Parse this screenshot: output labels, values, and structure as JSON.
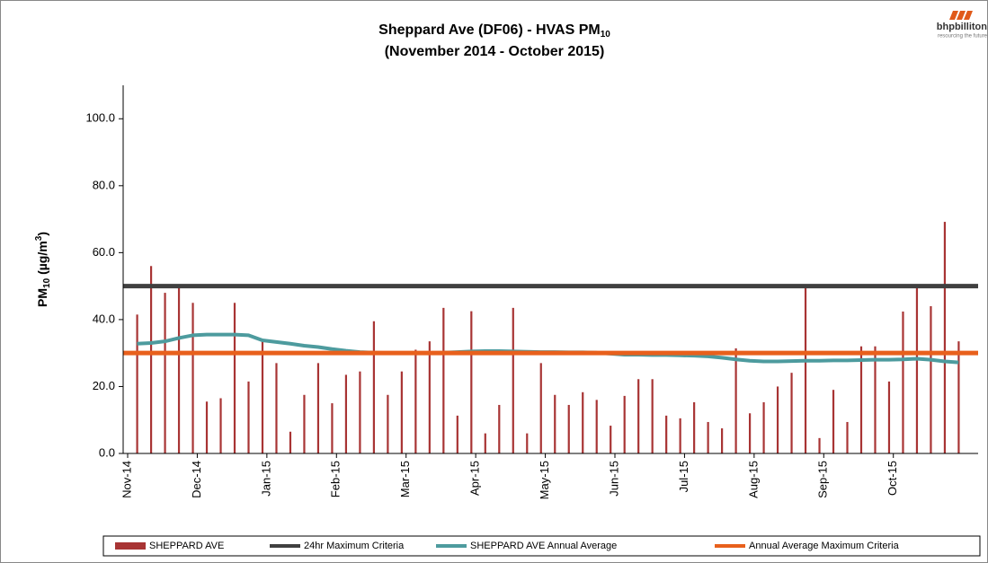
{
  "chart_data": {
    "type": "bar",
    "title_parts": [
      "Sheppard Ave (DF06) - HVAS PM",
      "10"
    ],
    "subtitle": "(November 2014 - October 2015)",
    "ylabel_parts": [
      "PM",
      "10",
      " (µg/m",
      "3",
      ")"
    ],
    "logo": {
      "name": "bhpbilliton",
      "tagline": "resourcing the future"
    },
    "month_labels": [
      "Nov-14",
      "Dec-14",
      "Jan-15",
      "Feb-15",
      "Mar-15",
      "Apr-15",
      "May-15",
      "Jun-15",
      "Jul-15",
      "Aug-15",
      "Sep-15",
      "Oct-15"
    ],
    "categories": [
      null,
      null,
      null,
      null,
      null,
      null,
      null,
      null,
      null,
      null,
      null,
      null,
      null,
      null,
      null,
      null,
      null,
      null,
      null,
      null,
      null,
      null,
      null,
      null,
      null,
      null,
      null,
      null,
      null,
      null,
      null,
      null,
      null,
      null,
      null,
      null,
      null,
      null,
      null,
      null,
      null,
      null,
      null,
      null,
      null,
      null,
      null,
      null,
      null,
      null,
      null,
      null,
      null,
      null,
      null,
      null,
      null,
      null,
      null,
      null
    ],
    "ylim": [
      0,
      110
    ],
    "yticks": [
      {
        "value": 0,
        "label": "0.0"
      },
      {
        "value": 20,
        "label": "20.0"
      },
      {
        "value": 40,
        "label": "40.0"
      },
      {
        "value": 60,
        "label": "60.0"
      },
      {
        "value": 80,
        "label": "80.0"
      },
      {
        "value": 100,
        "label": "100.0"
      }
    ],
    "grid": false,
    "legend": "bottom",
    "series": [
      {
        "name": "SHEPPARD AVE",
        "type": "bar",
        "color": "#a83434",
        "values": [
          41.5,
          56,
          48,
          50,
          45,
          15.5,
          16.5,
          45,
          21.5,
          34,
          27,
          6.5,
          17.5,
          27,
          15,
          23.5,
          24.5,
          39.5,
          17.5,
          24.5,
          31,
          33.5,
          43.5,
          11.3,
          42.5,
          6,
          14.5,
          43.5,
          6,
          27,
          17.5,
          14.5,
          18.3,
          16,
          8.3,
          17.2,
          22.2,
          22.2,
          11.3,
          10.5,
          15.3,
          9.4,
          7.5,
          31.4,
          12,
          15.3,
          20,
          24.1,
          50,
          4.6,
          19,
          9.4,
          32,
          32,
          21.5,
          42.4,
          50,
          44,
          69.2,
          33.5
        ]
      },
      {
        "name": "24hr Maximum Criteria",
        "type": "hline",
        "color": "#404040",
        "value": 50
      },
      {
        "name": "SHEPPARD AVE Annual Average",
        "type": "line",
        "color": "#4d9b9e",
        "values": [
          32.8,
          33,
          33.5,
          34.5,
          35.3,
          35.5,
          35.5,
          35.5,
          35.3,
          33.8,
          33.3,
          32.8,
          32.2,
          31.8,
          31.2,
          30.7,
          30.3,
          30.1,
          30,
          30,
          30,
          30,
          30.1,
          30.3,
          30.5,
          30.6,
          30.6,
          30.5,
          30.4,
          30.3,
          30.3,
          30.2,
          30.2,
          30.1,
          29.8,
          29.5,
          29.5,
          29.4,
          29.4,
          29.3,
          29.2,
          29,
          28.6,
          28.1,
          27.7,
          27.5,
          27.5,
          27.6,
          27.7,
          27.7,
          27.8,
          27.8,
          27.9,
          28,
          28,
          28.1,
          28.3,
          28,
          27.5,
          27.2
        ]
      },
      {
        "name": "Annual Average Maximum Criteria",
        "type": "hline",
        "color": "#e8601c",
        "value": 30
      }
    ]
  }
}
